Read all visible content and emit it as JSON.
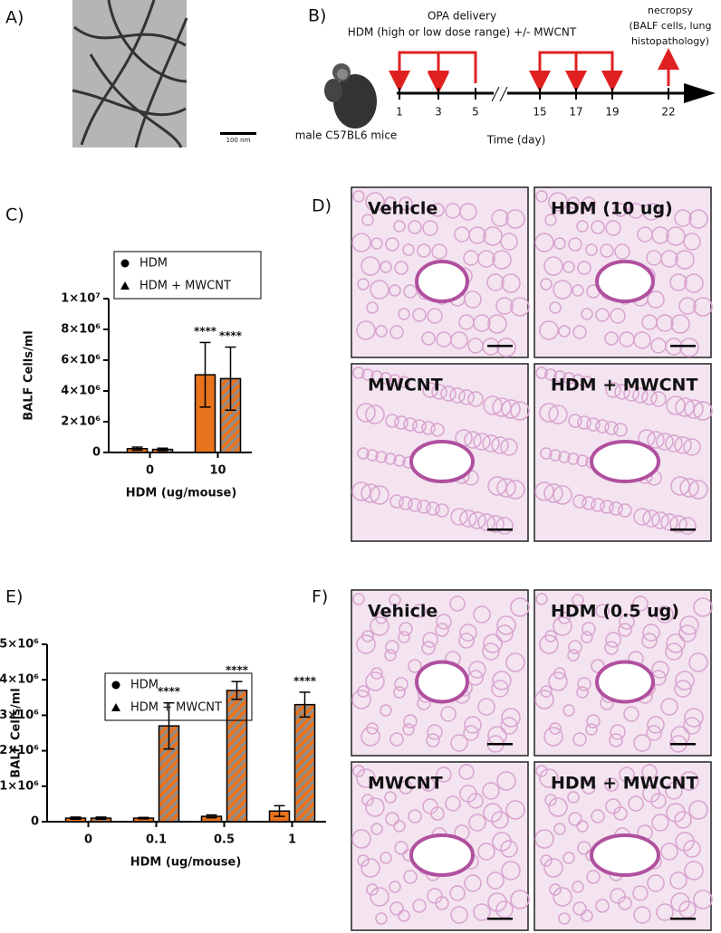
{
  "panels": {
    "A": {
      "label": "A)",
      "scale_bar": "100 nm"
    },
    "B": {
      "label": "B)",
      "title_line1": "OPA delivery",
      "title_line2": "HDM (high or low dose range) +/- MWCNT",
      "necropsy": [
        "necropsy",
        "(BALF cells, lung",
        "histopathology)"
      ],
      "mouse": "male C57BL6 mice",
      "days": [
        1,
        3,
        5,
        15,
        17,
        19,
        22
      ],
      "axis_title": "Time (day)"
    },
    "C": {
      "label": "C)"
    },
    "D": {
      "label": "D)",
      "images": [
        "Vehicle",
        "HDM (10 ug)",
        "MWCNT",
        "HDM + MWCNT"
      ]
    },
    "E": {
      "label": "E)"
    },
    "F": {
      "label": "F)",
      "images": [
        "Vehicle",
        "HDM (0.5 ug)",
        "MWCNT",
        "HDM + MWCNT"
      ]
    }
  },
  "chart_data": [
    {
      "type": "bar",
      "y_label": "BALF Cells/ml",
      "x_label": "HDM (ug/mouse)",
      "categories": [
        "0",
        "10"
      ],
      "legend": "upper left",
      "series": [
        {
          "name": "HDM",
          "color": "#e8731c",
          "marker": "circle",
          "hatch": false,
          "values": [
            250000,
            5050000
          ],
          "errors": [
            100000,
            2100000
          ],
          "annotations": [
            null,
            "****"
          ]
        },
        {
          "name": "HDM + MWCNT",
          "color": "#e8731c",
          "marker": "triangle",
          "hatch": true,
          "values": [
            200000,
            4800000
          ],
          "errors": [
            80000,
            2050000
          ],
          "annotations": [
            null,
            "****"
          ]
        }
      ],
      "ylim": [
        0,
        10000000
      ],
      "yticks": [
        0,
        {
          "value": 2000000,
          "label": "2×10⁶"
        },
        {
          "value": 4000000,
          "label": "4×10⁶"
        },
        {
          "value": 6000000,
          "label": "6×10⁶"
        },
        {
          "value": 8000000,
          "label": "8×10⁶"
        },
        {
          "value": 10000000,
          "label": "1×10⁷"
        }
      ]
    },
    {
      "type": "bar",
      "y_label": "BALF Cells/ml",
      "x_label": "HDM (ug/mouse)",
      "categories": [
        "0",
        "0.1",
        "0.5",
        "1"
      ],
      "legend": "upper left",
      "series": [
        {
          "name": "HDM",
          "color": "#e8731c",
          "marker": "circle",
          "hatch": false,
          "values": [
            100000,
            100000,
            150000,
            300000
          ],
          "errors": [
            30000,
            20000,
            40000,
            150000
          ],
          "annotations": [
            null,
            null,
            null,
            null
          ]
        },
        {
          "name": "HDM + MWCNT",
          "color": "#e8731c",
          "marker": "triangle",
          "hatch": true,
          "values": [
            100000,
            2700000,
            3700000,
            3300000
          ],
          "errors": [
            30000,
            650000,
            250000,
            350000
          ],
          "annotations": [
            null,
            "****",
            "****",
            "****"
          ]
        }
      ],
      "ylim": [
        0,
        5000000
      ],
      "yticks": [
        0,
        {
          "value": 1000000,
          "label": "1×10⁶"
        },
        {
          "value": 2000000,
          "label": "2×10⁶"
        },
        {
          "value": 3000000,
          "label": "3×10⁶"
        },
        {
          "value": 4000000,
          "label": "4×10⁶"
        },
        {
          "value": 5000000,
          "label": "5×10⁶"
        }
      ]
    }
  ]
}
